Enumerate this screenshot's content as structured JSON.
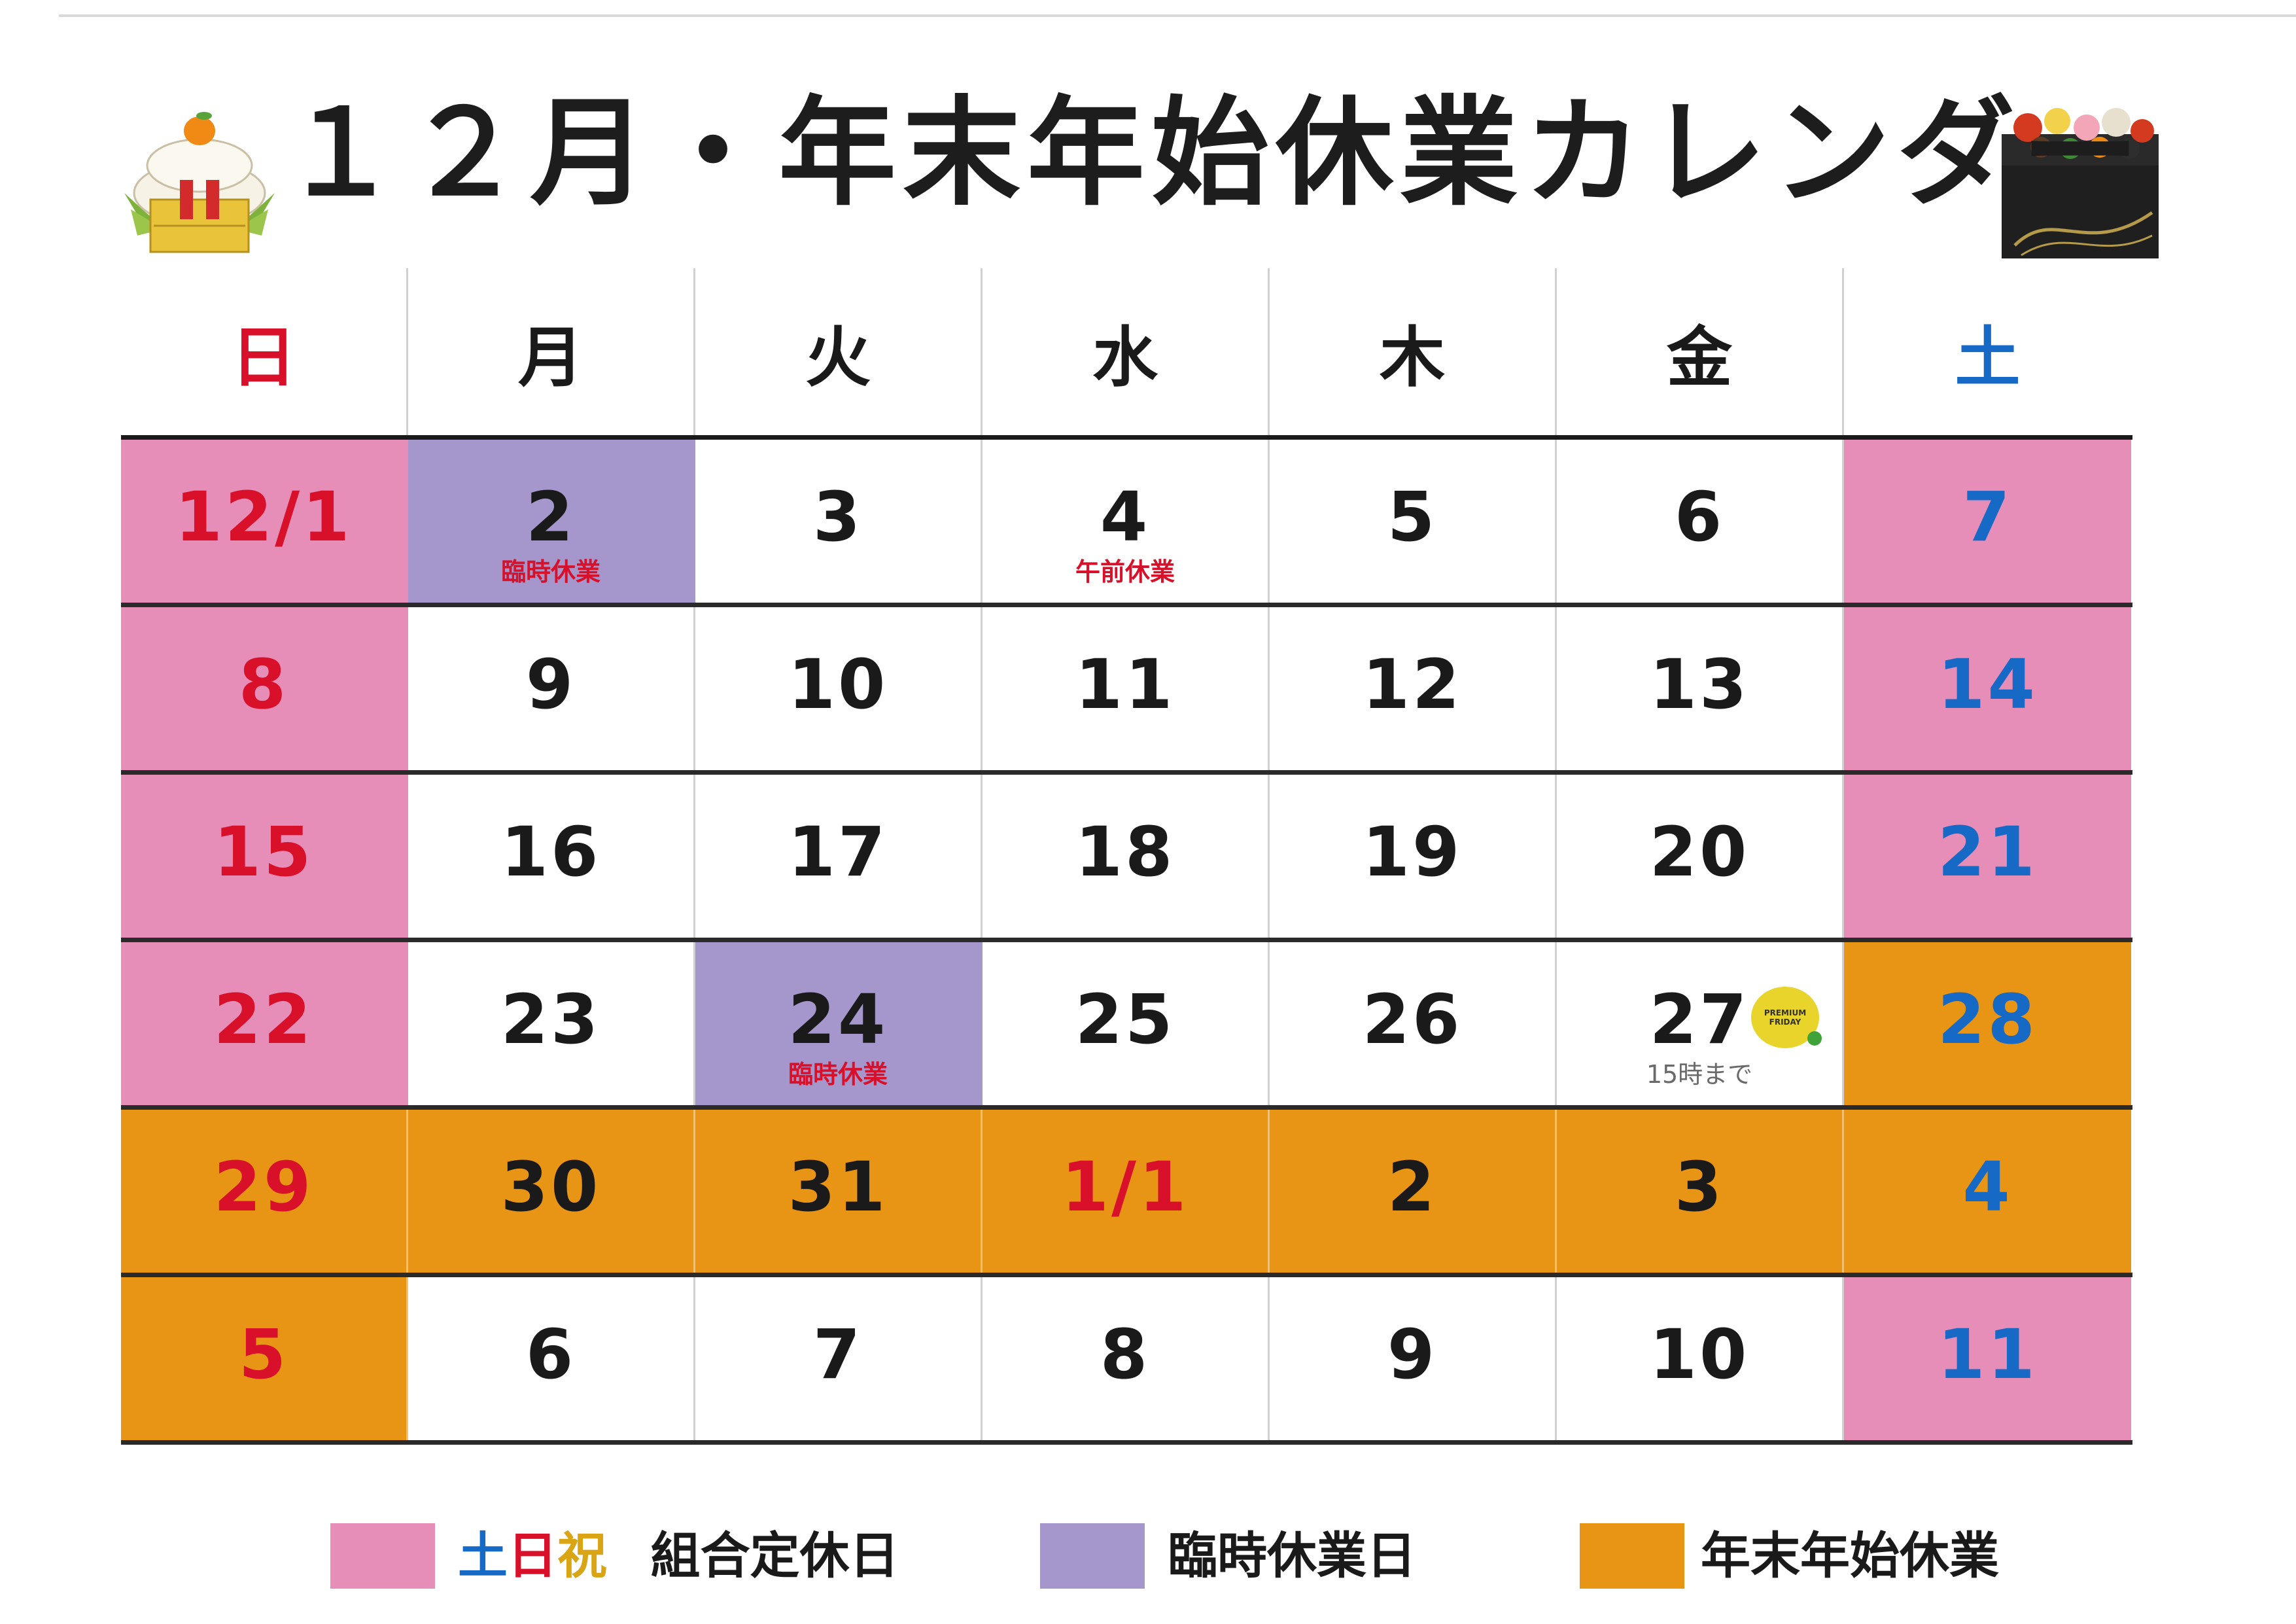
{
  "title": "１２月・年末年始休業カレンダー",
  "weekday_headers": [
    "日",
    "月",
    "火",
    "水",
    "木",
    "金",
    "土"
  ],
  "weeks": [
    [
      {
        "num": "12/1",
        "bg": "pink",
        "color": "red"
      },
      {
        "num": "2",
        "bg": "purple",
        "color": "black",
        "note": "臨時休業"
      },
      {
        "num": "3",
        "bg": "white",
        "color": "black"
      },
      {
        "num": "4",
        "bg": "white",
        "color": "black",
        "note": "午前休業"
      },
      {
        "num": "5",
        "bg": "white",
        "color": "black"
      },
      {
        "num": "6",
        "bg": "white",
        "color": "black"
      },
      {
        "num": "7",
        "bg": "pink",
        "color": "blue"
      }
    ],
    [
      {
        "num": "8",
        "bg": "pink",
        "color": "red"
      },
      {
        "num": "9",
        "bg": "white",
        "color": "black"
      },
      {
        "num": "10",
        "bg": "white",
        "color": "black"
      },
      {
        "num": "11",
        "bg": "white",
        "color": "black"
      },
      {
        "num": "12",
        "bg": "white",
        "color": "black"
      },
      {
        "num": "13",
        "bg": "white",
        "color": "black"
      },
      {
        "num": "14",
        "bg": "pink",
        "color": "blue"
      }
    ],
    [
      {
        "num": "15",
        "bg": "pink",
        "color": "red"
      },
      {
        "num": "16",
        "bg": "white",
        "color": "black"
      },
      {
        "num": "17",
        "bg": "white",
        "color": "black"
      },
      {
        "num": "18",
        "bg": "white",
        "color": "black"
      },
      {
        "num": "19",
        "bg": "white",
        "color": "black"
      },
      {
        "num": "20",
        "bg": "white",
        "color": "black"
      },
      {
        "num": "21",
        "bg": "pink",
        "color": "blue"
      }
    ],
    [
      {
        "num": "22",
        "bg": "pink",
        "color": "red"
      },
      {
        "num": "23",
        "bg": "white",
        "color": "black"
      },
      {
        "num": "24",
        "bg": "purple",
        "color": "black",
        "note": "臨時休業"
      },
      {
        "num": "25",
        "bg": "white",
        "color": "black"
      },
      {
        "num": "26",
        "bg": "white",
        "color": "black"
      },
      {
        "num": "27",
        "bg": "white",
        "color": "black",
        "note": "15時まで",
        "note_style": "gray",
        "badge": true
      },
      {
        "num": "28",
        "bg": "orange",
        "color": "blue"
      }
    ],
    [
      {
        "num": "29",
        "bg": "orange",
        "color": "red"
      },
      {
        "num": "30",
        "bg": "orange",
        "color": "black"
      },
      {
        "num": "31",
        "bg": "orange",
        "color": "black"
      },
      {
        "num": "1/1",
        "bg": "orange",
        "color": "red"
      },
      {
        "num": "2",
        "bg": "orange",
        "color": "black"
      },
      {
        "num": "3",
        "bg": "orange",
        "color": "black"
      },
      {
        "num": "4",
        "bg": "orange",
        "color": "blue"
      }
    ],
    [
      {
        "num": "5",
        "bg": "orange",
        "color": "red"
      },
      {
        "num": "6",
        "bg": "white",
        "color": "black"
      },
      {
        "num": "7",
        "bg": "white",
        "color": "black"
      },
      {
        "num": "8",
        "bg": "white",
        "color": "black"
      },
      {
        "num": "9",
        "bg": "white",
        "color": "black"
      },
      {
        "num": "10",
        "bg": "white",
        "color": "black"
      },
      {
        "num": "11",
        "bg": "pink",
        "color": "blue"
      }
    ]
  ],
  "premium_friday": {
    "line1": "PREMIUM",
    "line2": "FRIDAY"
  },
  "legend": {
    "item1": {
      "sat": "土",
      "sun": "日",
      "hol": "祝",
      "label": "組合定休日"
    },
    "item2": {
      "label": "臨時休業日"
    },
    "item3": {
      "label": "年末年始休業"
    }
  },
  "colors": {
    "pink": "#e68db8",
    "purple": "#a597cc",
    "orange": "#e89414",
    "red": "#d8102a",
    "blue": "#1669c5",
    "gold": "#d9a514"
  }
}
